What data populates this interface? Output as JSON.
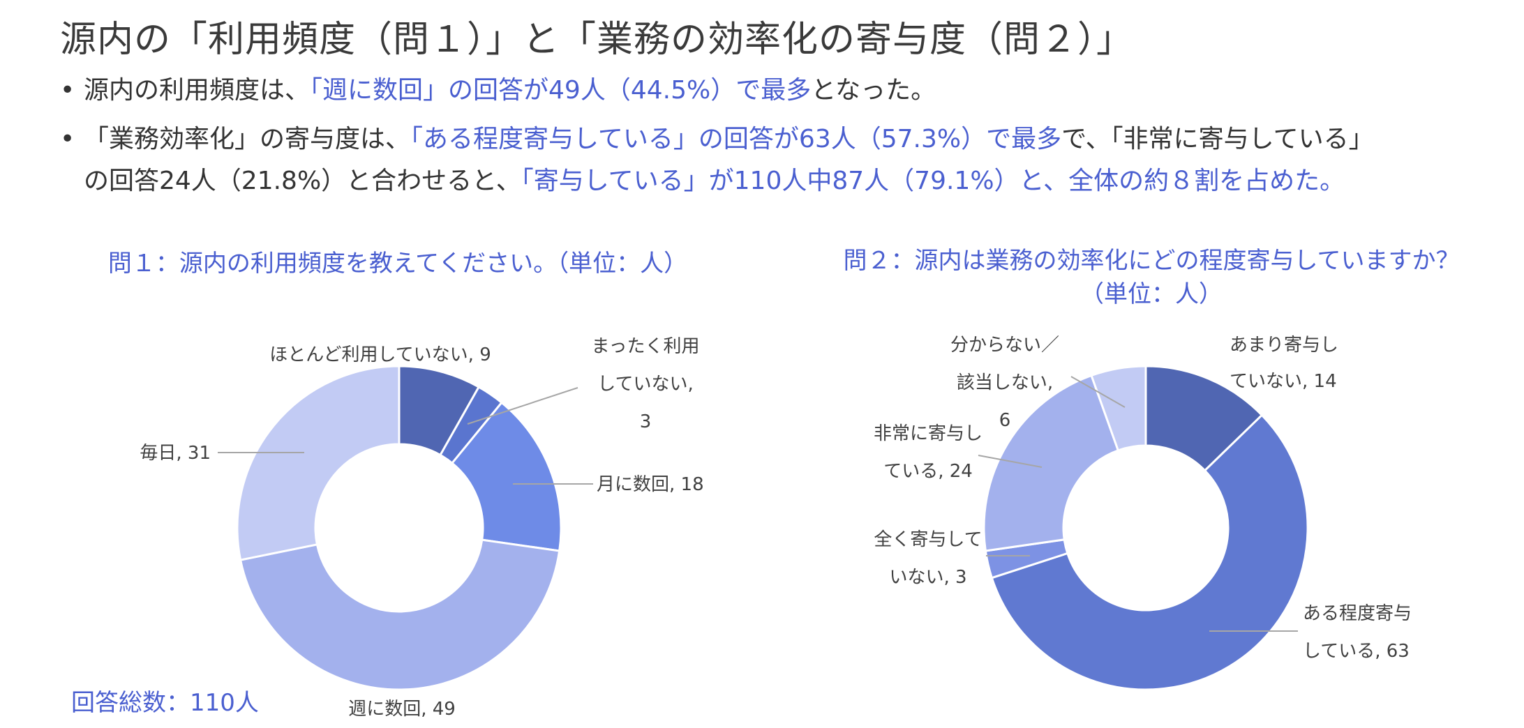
{
  "title": "源内の「利用頻度（問１）」と「業務の効率化の寄与度（問２）」",
  "bullets": {
    "b1": {
      "dot": "•",
      "p1": "源内の利用頻度は、",
      "p2": "「週に数回」の回答が49人（44.5%）で最多",
      "p3": "となった。"
    },
    "b2": {
      "dot": "•",
      "p1": "「業務効率化」の寄与度は、",
      "p2": "「ある程度寄与している」の回答が63人（57.3%）で最多",
      "p3": "で、「非常に寄与している」",
      "p4": "の回答24人（21.8%）と合わせると、",
      "p5": "「寄与している」が110人中87人（79.1%）と、",
      "p6": "全体の約８割を占めた。"
    }
  },
  "total_label": "回答総数：110人",
  "colors": {
    "highlight": "#4a5fd0",
    "leader": "#a6a6a6"
  },
  "chart_data": [
    {
      "type": "pie",
      "style": "donut",
      "title": "問１：源内の利用頻度を教えてください。（単位：人）",
      "categories": [
        "ほとんど利用していない",
        "まったく利用していない",
        "月に数回",
        "週に数回",
        "毎日"
      ],
      "values": [
        9,
        3,
        18,
        49,
        31
      ],
      "colors": [
        "#5066b2",
        "#5a75cf",
        "#6e8be7",
        "#a3b1ed",
        "#c2cbf4"
      ],
      "labels": [
        {
          "lines": [
            "ほとんど利用していない, 9"
          ]
        },
        {
          "lines": [
            "まったく利用",
            "していない,",
            "3"
          ]
        },
        {
          "lines": [
            "月に数回, 18"
          ]
        },
        {
          "lines": [
            "週に数回, 49"
          ]
        },
        {
          "lines": [
            "毎日, 31"
          ]
        }
      ]
    },
    {
      "type": "pie",
      "style": "donut",
      "title": "問２：源内は業務の効率化にどの程度寄与していますか？",
      "subtitle": "（単位：人）",
      "categories": [
        "あまり寄与していない",
        "ある程度寄与している",
        "全く寄与していない",
        "非常に寄与している",
        "分からない／該当しない"
      ],
      "values": [
        14,
        63,
        3,
        24,
        6
      ],
      "colors": [
        "#5066b2",
        "#6079d1",
        "#7d92e4",
        "#a3b1ed",
        "#c2cbf4"
      ],
      "labels": [
        {
          "lines": [
            "あまり寄与し",
            "ていない, 14"
          ]
        },
        {
          "lines": [
            "ある程度寄与",
            "している, 63"
          ]
        },
        {
          "lines": [
            "全く寄与して",
            "いない, 3"
          ]
        },
        {
          "lines": [
            "非常に寄与し",
            "ている, 24"
          ]
        },
        {
          "lines": [
            "分からない／",
            "該当しない,",
            "6"
          ]
        }
      ]
    }
  ]
}
